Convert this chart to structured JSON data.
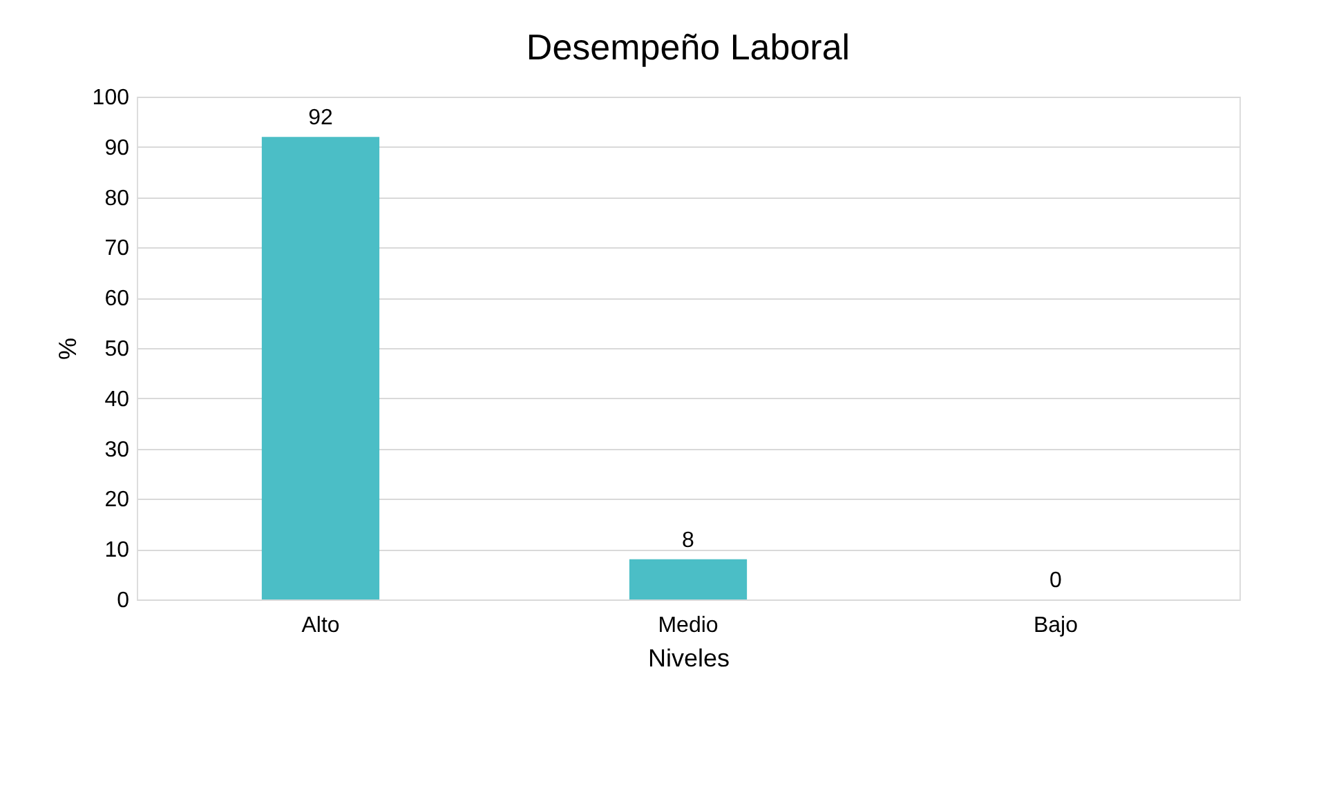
{
  "chart_data": {
    "type": "bar",
    "title": "Desempeño Laboral",
    "xlabel": "Niveles",
    "ylabel": "%",
    "categories": [
      "Alto",
      "Medio",
      "Bajo"
    ],
    "values": [
      92,
      8,
      0
    ],
    "color": "#4bbec6",
    "ylim": [
      0,
      100
    ],
    "yticks": [
      0,
      10,
      20,
      30,
      40,
      50,
      60,
      70,
      80,
      90,
      100
    ],
    "grid": "y",
    "data_labels": true
  }
}
